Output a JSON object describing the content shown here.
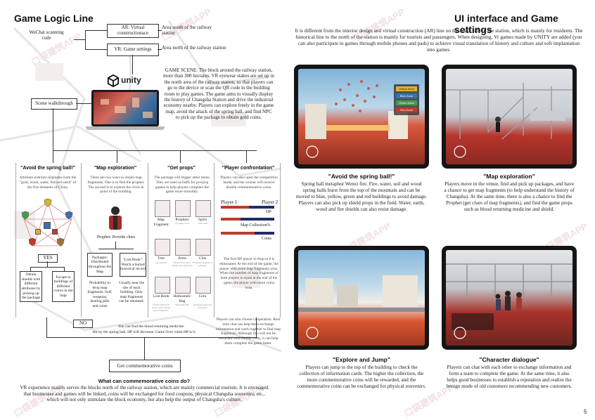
{
  "left": {
    "title": "Game Logic Line",
    "wechat": "WeChat scanning code",
    "ar_box": "AR: Virtual constructionace",
    "vr_box": "VR: Game settings",
    "area_south": "Area south of the railway station",
    "area_north": "Area north of the railway station",
    "unity": "unity",
    "scene_walk": "Scene walkthrough",
    "game_scene": "GAME SCENE: The block around the railway station, more than 300 hectares. VR eyewear stakes are set up in the north area of the railway station, so that players can go to the device or scan the QR code in the building room to play games. The game aims to visually display the history of Changsha Station and drive the industrial economy nearby. Players can explore freely in the game map, avoid the attack of the spring ball, and find NPC to pick up the package to obtain gold coins.",
    "columns": [
      {
        "title": "\"Avoid the spring ball!\"",
        "desc": "Attribute restraint originates from the \"gold, wood, water, fire and earth\" of the five elements of China."
      },
      {
        "title": "\"Map exploration\"",
        "desc": "There are two ways to obtain map fragments. One is to find the prophet. The second is to explore the clock in point of the building."
      },
      {
        "title": "\"Get props\"",
        "desc": "The package will trigger other items. They are used as buffs for pve/pvp games to help players complete the game more smoothly."
      },
      {
        "title": "\"Player confrontation\"",
        "desc": "Players can also open the competition mode, and the winner will receive double commemorative coins."
      }
    ],
    "yes": "YES",
    "no": "NO",
    "obtain": "Obtain shields with different attributes by picking up the package",
    "escape": "Escape to buildings of different colors in the map",
    "prophet": "Prophet: Provide clues",
    "packages": "Packages: Distributed throughout the Map",
    "lost_book": "\"Lost Book\": Watch a buried historical record",
    "probability": "Probability to drop map fragments, buff, weapons, healing pills and coins",
    "usually": "Usually near the site of each building. Only map fragments can be obtained.",
    "props": [
      {
        "name": "Map Fragment",
        "note": ""
      },
      {
        "name": "Prophets",
        "note": "Get map clues"
      },
      {
        "name": "Spirit",
        "note": "Gain buff"
      },
      {
        "name": "Tree",
        "note": "Get shields"
      },
      {
        "name": "Arms",
        "note": "Kudos 5% CD in spring ball explosion"
      },
      {
        "name": "Clue",
        "note": "From the prophet or package"
      },
      {
        "name": "Lost Book",
        "note": "Collect historical stories and various map fragments"
      },
      {
        "name": "Hemostatic Bag",
        "note": "Restoring HP"
      },
      {
        "name": "Coin",
        "note": "Exchange physical souvenirs"
      }
    ],
    "player1": "Player 1",
    "player2": "Player 2",
    "hp": "HP",
    "map_collection": "Map Collection%",
    "coins_lbl": "Coins",
    "first_hp": "The first HP player to drop to 0 is eliminated. At the end of the game, the player with more map fragments wins. When the number of map fragments of both players is equal at the end of the game, the player with more coins wins.",
    "coop": "Players can also choose cooperation. Real time chat can help them exchange information and work together to find map fragments. Although this will not be rewarded with double coins, it can help them complete the game faster.",
    "blood_line1": "You can find the blood returning medicine.",
    "blood_line2": "Hit by the spring ball, HP will decrease. Game Over when HP is 0.",
    "get_coins": "Get commemorative coins",
    "coins_q": "What can commemorative coins do?",
    "coins_a": "VR experience mainly serves the blocks north of the railway station, which are mainly commercial tourism. It is envisaged that businesses and games will be linked, coins will be exchanged for food coupons, physical Changsha souvenirs, etc., which will not only stimulate the block economy, but also help the output of Changsha's culture."
  },
  "right": {
    "title": "UI interface and Game settings",
    "intro": "It is different from the interior design and virtual construction (AR) line on the south side of the station, which is mainly for residents. The historical line to the north of the station is mainly for tourists and passengers. When designing, Vr games made by UNITY are added (you can also participate in games through mobile phones and pads) to achieve visual translation of history and culture and soft implantation into games.",
    "panels": [
      {
        "title": "\"Avoid the spring ball!\"",
        "desc": "Spring ball metaphor Wenxi fire. Fire, water, soil and wood spring balls burst from the top of the mountain and can be moved to blue, yellow, green and red buildings to avoid damage. Players can also pick up shield props in the field. Water, earth, wood and fire shields can also resist damage."
      },
      {
        "title": "\"Map exploration\"",
        "desc": "Players move in the venue, find and pick up packages, and have a chance to get map fragments (to help understand the history of Changsha). At the same time, there is also a chance to find the Prophet (get clues of map fragments), and find the game props such as blood returning medicine and shield."
      },
      {
        "title": "\"Explore and Jump\"",
        "desc": "Players can jump to the top of the building to check the collection of information cards. The higher the collection, the more commemorative coins will be rewarded, and the commemorative coins can be exchanged for physical souvenirs."
      },
      {
        "title": "\"Character dialogue\"",
        "desc": "Players can chat with each other to exchange information and form a team to complete the game. At the same time, it also helps good businesses to establish a reputation and realize the benign mode of old customers recommending new customers."
      }
    ],
    "ui_menu": [
      "Yellow Zone",
      "Blue Zone",
      "Green Zone",
      "Red Zone"
    ]
  },
  "page_number": "5",
  "watermark": "口袋建筑APP",
  "colors": {
    "accent": "#c0392b",
    "navy": "#2c3e7a",
    "ink": "#222222"
  }
}
